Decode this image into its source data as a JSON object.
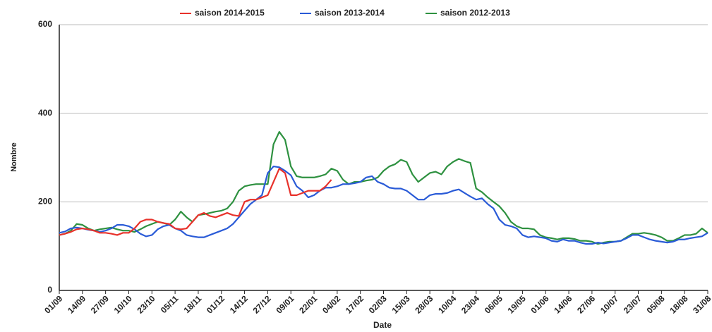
{
  "chart_data": {
    "type": "line",
    "x_label": "Date",
    "y_label": "Nombre",
    "categories": [
      "01/09",
      null,
      null,
      null,
      "14/09",
      null,
      null,
      null,
      "27/09",
      null,
      null,
      null,
      "10/10",
      null,
      null,
      null,
      "23/10",
      null,
      null,
      null,
      "05/11",
      null,
      null,
      null,
      "18/11",
      null,
      null,
      null,
      "01/12",
      null,
      null,
      null,
      "14/12",
      null,
      null,
      null,
      "27/12",
      null,
      null,
      null,
      "09/01",
      null,
      null,
      null,
      "22/01",
      null,
      null,
      null,
      "04/02",
      null,
      null,
      null,
      "17/02",
      null,
      null,
      null,
      "02/03",
      null,
      null,
      null,
      "15/03",
      null,
      null,
      null,
      "28/03",
      null,
      null,
      null,
      "10/04",
      null,
      null,
      null,
      "23/04",
      null,
      null,
      null,
      "06/05",
      null,
      null,
      null,
      "19/05",
      null,
      null,
      null,
      "01/06",
      null,
      null,
      null,
      "14/06",
      null,
      null,
      null,
      "27/06",
      null,
      null,
      null,
      "10/07",
      null,
      null,
      null,
      "23/07",
      null,
      null,
      null,
      "05/08",
      null,
      null,
      null,
      "18/08",
      null,
      null,
      null,
      "31/08"
    ],
    "series": [
      {
        "name": "saison 2014-2015",
        "color": "#e8322b",
        "values": [
          125,
          128,
          132,
          138,
          140,
          138,
          135,
          130,
          130,
          128,
          125,
          130,
          130,
          140,
          155,
          160,
          160,
          155,
          152,
          150,
          140,
          138,
          140,
          155,
          170,
          175,
          168,
          165,
          170,
          175,
          170,
          168,
          200,
          205,
          205,
          210,
          215,
          245,
          275,
          265,
          215,
          215,
          220,
          225,
          225,
          225,
          235,
          250,
          null,
          null,
          null,
          null,
          null,
          null,
          null,
          null,
          null,
          null,
          null,
          null,
          null,
          null,
          null,
          null,
          null,
          null,
          null,
          null,
          null,
          null,
          null,
          null,
          null,
          null,
          null,
          null,
          null,
          null,
          null,
          null,
          null,
          null,
          null,
          null,
          null,
          null,
          null,
          null,
          null,
          null,
          null,
          null,
          null,
          null,
          null,
          null,
          null,
          null,
          null,
          null,
          null,
          null,
          null,
          null,
          null,
          null,
          null,
          null,
          null,
          null,
          null,
          null,
          null
        ]
      },
      {
        "name": "saison 2013-2014",
        "color": "#2a5bd7",
        "values": [
          130,
          133,
          140,
          142,
          140,
          137,
          135,
          132,
          135,
          140,
          148,
          148,
          145,
          138,
          128,
          122,
          125,
          138,
          145,
          148,
          140,
          135,
          125,
          122,
          120,
          120,
          125,
          130,
          135,
          140,
          150,
          165,
          180,
          195,
          205,
          215,
          265,
          280,
          278,
          270,
          260,
          235,
          225,
          210,
          215,
          225,
          232,
          232,
          235,
          240,
          240,
          242,
          245,
          255,
          258,
          245,
          240,
          232,
          230,
          230,
          225,
          215,
          205,
          205,
          215,
          218,
          218,
          220,
          225,
          228,
          220,
          212,
          205,
          208,
          195,
          185,
          160,
          148,
          145,
          140,
          125,
          120,
          122,
          120,
          118,
          112,
          110,
          115,
          112,
          112,
          108,
          105,
          105,
          108,
          106,
          108,
          110,
          112,
          118,
          125,
          125,
          120,
          115,
          112,
          110,
          108,
          110,
          115,
          115,
          118,
          120,
          122,
          130
        ]
      },
      {
        "name": "saison 2012-2013",
        "color": "#2e9140",
        "values": [
          125,
          128,
          135,
          150,
          148,
          140,
          135,
          138,
          140,
          142,
          138,
          135,
          135,
          132,
          138,
          145,
          150,
          155,
          152,
          148,
          160,
          178,
          165,
          155,
          170,
          172,
          175,
          178,
          180,
          185,
          200,
          225,
          235,
          238,
          240,
          240,
          240,
          330,
          358,
          340,
          280,
          258,
          255,
          255,
          255,
          258,
          262,
          275,
          270,
          250,
          240,
          245,
          245,
          248,
          250,
          255,
          270,
          280,
          285,
          295,
          290,
          262,
          245,
          255,
          265,
          268,
          262,
          280,
          290,
          297,
          292,
          288,
          230,
          222,
          210,
          200,
          190,
          175,
          155,
          145,
          140,
          140,
          138,
          125,
          120,
          118,
          115,
          118,
          118,
          116,
          112,
          112,
          110,
          105,
          108,
          110,
          110,
          112,
          120,
          128,
          128,
          130,
          128,
          125,
          120,
          112,
          112,
          118,
          125,
          125,
          128,
          140,
          130
        ]
      }
    ],
    "ylim": [
      0,
      600
    ],
    "yticks": [
      0,
      200,
      400,
      600
    ],
    "grid": true,
    "legend": "top"
  }
}
